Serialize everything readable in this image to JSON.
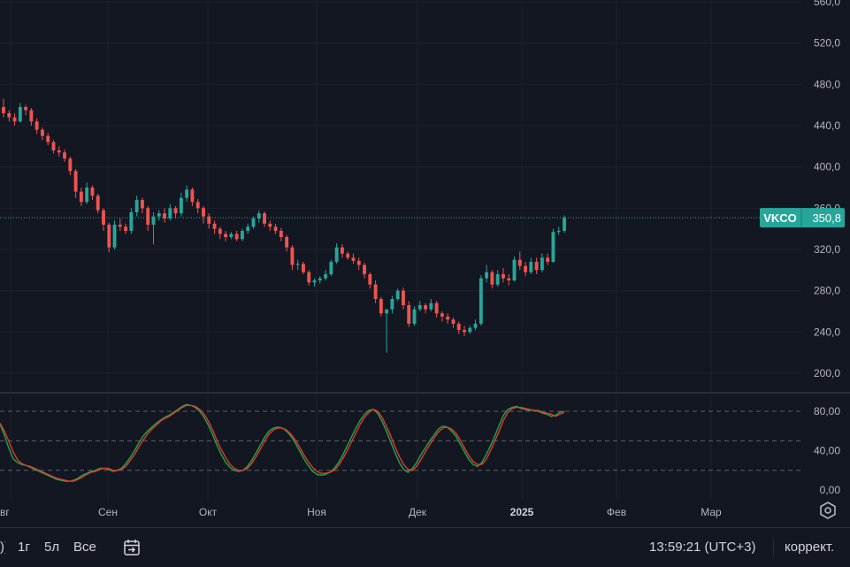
{
  "ticker": "VKCO",
  "last_price": "350,8",
  "colors": {
    "up": "#26a69a",
    "down": "#ef5350",
    "background": "#131722",
    "grid": "#1e222d",
    "text": "#b2b5be",
    "k_line": "#1fa84a",
    "d_line": "#e23a2f",
    "price_line": "#26a69a"
  },
  "bottom_bar": {
    "range_1y": "1г",
    "range_5y": "5л",
    "range_all": "Все",
    "calendar_icon": "calendar-goto-icon",
    "clock": "13:59:21 (UTC+3)",
    "adjustment": "коррект."
  },
  "chart_data": [
    {
      "type": "candlestick",
      "ticker": "VKCO",
      "y_axis_ticks": [
        "560,0",
        "520,0",
        "480,0",
        "440,0",
        "400,0",
        "360,0",
        "320,0",
        "280,0",
        "240,0",
        "200,0"
      ],
      "ylim": [
        180,
        562
      ],
      "x_axis_labels": [
        "вг",
        "Сен",
        "Окт",
        "Ноя",
        "Дек",
        "2025",
        "Фев",
        "Мар"
      ],
      "last_value": 350.8,
      "candles": [
        [
          458,
          466,
          448,
          452
        ],
        [
          452,
          455,
          444,
          448
        ],
        [
          448,
          452,
          440,
          444
        ],
        [
          444,
          462,
          443,
          458
        ],
        [
          458,
          460,
          450,
          455
        ],
        [
          455,
          457,
          440,
          444
        ],
        [
          444,
          447,
          432,
          436
        ],
        [
          436,
          438,
          426,
          430
        ],
        [
          430,
          433,
          421,
          424
        ],
        [
          424,
          426,
          413,
          416
        ],
        [
          416,
          420,
          410,
          414
        ],
        [
          414,
          417,
          405,
          408
        ],
        [
          408,
          410,
          392,
          396
        ],
        [
          396,
          398,
          370,
          376
        ],
        [
          376,
          380,
          362,
          366
        ],
        [
          366,
          385,
          364,
          380
        ],
        [
          380,
          382,
          368,
          372
        ],
        [
          372,
          374,
          355,
          358
        ],
        [
          358,
          360,
          338,
          344
        ],
        [
          344,
          346,
          317,
          322
        ],
        [
          322,
          348,
          320,
          344
        ],
        [
          344,
          350,
          338,
          342
        ],
        [
          342,
          345,
          335,
          338
        ],
        [
          338,
          360,
          335,
          356
        ],
        [
          356,
          372,
          352,
          368
        ],
        [
          368,
          370,
          355,
          360
        ],
        [
          360,
          362,
          338,
          344
        ],
        [
          344,
          356,
          325,
          352
        ],
        [
          352,
          358,
          348,
          355
        ],
        [
          355,
          360,
          346,
          350
        ],
        [
          350,
          364,
          348,
          360
        ],
        [
          360,
          362,
          350,
          355
        ],
        [
          355,
          375,
          352,
          370
        ],
        [
          370,
          382,
          366,
          378
        ],
        [
          378,
          380,
          362,
          366
        ],
        [
          366,
          369,
          355,
          360
        ],
        [
          360,
          362,
          345,
          352
        ],
        [
          352,
          355,
          340,
          345
        ],
        [
          345,
          348,
          335,
          340
        ],
        [
          340,
          342,
          330,
          335
        ],
        [
          335,
          338,
          328,
          332
        ],
        [
          332,
          337,
          330,
          335
        ],
        [
          335,
          338,
          328,
          330
        ],
        [
          330,
          340,
          328,
          338
        ],
        [
          338,
          345,
          335,
          342
        ],
        [
          342,
          352,
          340,
          350
        ],
        [
          350,
          358,
          346,
          355
        ],
        [
          355,
          357,
          342,
          345
        ],
        [
          345,
          348,
          338,
          342
        ],
        [
          342,
          345,
          335,
          338
        ],
        [
          338,
          341,
          328,
          332
        ],
        [
          332,
          334,
          318,
          322
        ],
        [
          322,
          324,
          300,
          305
        ],
        [
          305,
          310,
          300,
          306
        ],
        [
          306,
          308,
          296,
          298
        ],
        [
          298,
          300,
          285,
          288
        ],
        [
          288,
          292,
          284,
          290
        ],
        [
          290,
          294,
          287,
          292
        ],
        [
          292,
          300,
          290,
          296
        ],
        [
          296,
          310,
          294,
          308
        ],
        [
          308,
          326,
          306,
          322
        ],
        [
          322,
          325,
          312,
          316
        ],
        [
          316,
          318,
          310,
          312
        ],
        [
          312,
          316,
          306,
          309
        ],
        [
          309,
          312,
          300,
          305
        ],
        [
          305,
          307,
          292,
          296
        ],
        [
          296,
          298,
          282,
          286
        ],
        [
          286,
          290,
          268,
          272
        ],
        [
          272,
          274,
          255,
          258
        ],
        [
          258,
          262,
          220,
          262
        ],
        [
          262,
          275,
          258,
          272
        ],
        [
          272,
          282,
          270,
          280
        ],
        [
          280,
          283,
          262,
          266
        ],
        [
          266,
          270,
          245,
          248
        ],
        [
          248,
          265,
          246,
          262
        ],
        [
          262,
          270,
          260,
          266
        ],
        [
          266,
          268,
          258,
          262
        ],
        [
          262,
          272,
          260,
          268
        ],
        [
          268,
          270,
          254,
          258
        ],
        [
          258,
          260,
          250,
          255
        ],
        [
          255,
          258,
          248,
          252
        ],
        [
          252,
          254,
          244,
          248
        ],
        [
          248,
          250,
          238,
          242
        ],
        [
          242,
          246,
          236,
          240
        ],
        [
          240,
          246,
          238,
          244
        ],
        [
          244,
          252,
          242,
          248
        ],
        [
          248,
          295,
          246,
          292
        ],
        [
          292,
          305,
          288,
          298
        ],
        [
          298,
          300,
          282,
          286
        ],
        [
          286,
          300,
          284,
          296
        ],
        [
          296,
          302,
          288,
          292
        ],
        [
          292,
          296,
          285,
          290
        ],
        [
          290,
          313,
          289,
          310
        ],
        [
          310,
          318,
          300,
          304
        ],
        [
          304,
          308,
          294,
          298
        ],
        [
          298,
          312,
          296,
          308
        ],
        [
          308,
          312,
          296,
          300
        ],
        [
          300,
          316,
          298,
          312
        ],
        [
          312,
          316,
          305,
          308
        ],
        [
          308,
          340,
          307,
          337
        ],
        [
          337,
          342,
          334,
          338
        ],
        [
          338,
          353,
          336,
          350.8
        ]
      ]
    },
    {
      "type": "line",
      "indicator": "stochastic",
      "y_axis_ticks": [
        "80,00",
        "40,00",
        "0,00"
      ],
      "ylim": [
        0,
        100
      ],
      "levels": [
        80,
        50,
        20
      ],
      "series": [
        {
          "key": "k",
          "values": [
            67,
            56,
            43,
            32,
            28,
            26,
            25,
            23,
            21,
            19,
            17,
            15,
            13,
            11,
            10,
            9,
            9,
            10,
            12,
            15,
            17,
            19,
            20,
            22,
            22,
            21,
            19,
            20,
            22,
            27,
            33,
            40,
            48,
            55,
            60,
            64,
            68,
            71,
            74,
            76,
            79,
            82,
            85,
            87,
            86,
            84,
            80,
            74,
            66,
            56,
            45,
            36,
            28,
            23,
            20,
            19,
            20,
            24,
            30,
            38,
            46,
            54,
            60,
            63,
            64,
            63,
            60,
            55,
            48,
            40,
            32,
            25,
            19,
            16,
            15,
            16,
            18,
            22,
            28,
            36,
            45,
            54,
            63,
            71,
            77,
            81,
            82,
            78,
            70,
            60,
            49,
            38,
            28,
            21,
            18,
            22,
            28,
            36,
            43,
            50,
            56,
            62,
            65,
            64,
            60,
            55,
            47,
            39,
            31,
            26,
            24,
            28,
            36,
            45,
            55,
            66,
            76,
            82,
            84,
            85,
            83,
            82,
            81,
            81,
            80,
            78,
            77,
            75,
            76,
            79,
            80
          ]
        },
        {
          "key": "d",
          "values": [
            68,
            60,
            50,
            39,
            31,
            27,
            25,
            24,
            22,
            20,
            18,
            16,
            14,
            12,
            11,
            10,
            9,
            9,
            11,
            13,
            16,
            18,
            19,
            21,
            22,
            22,
            20,
            20,
            21,
            24,
            30,
            36,
            44,
            51,
            57,
            62,
            66,
            70,
            73,
            75,
            78,
            81,
            84,
            86,
            86,
            85,
            82,
            77,
            70,
            61,
            50,
            41,
            33,
            26,
            22,
            20,
            20,
            22,
            27,
            34,
            42,
            50,
            57,
            61,
            63,
            63,
            61,
            57,
            51,
            44,
            36,
            29,
            23,
            19,
            17,
            17,
            18,
            20,
            25,
            32,
            40,
            49,
            58,
            67,
            74,
            79,
            82,
            80,
            74,
            65,
            55,
            44,
            34,
            26,
            21,
            20,
            24,
            31,
            39,
            46,
            53,
            59,
            63,
            64,
            62,
            58,
            51,
            43,
            35,
            29,
            26,
            26,
            31,
            40,
            50,
            60,
            71,
            79,
            83,
            84,
            84,
            83,
            82,
            81,
            81,
            79,
            78,
            77,
            75,
            77,
            79
          ]
        }
      ]
    }
  ]
}
